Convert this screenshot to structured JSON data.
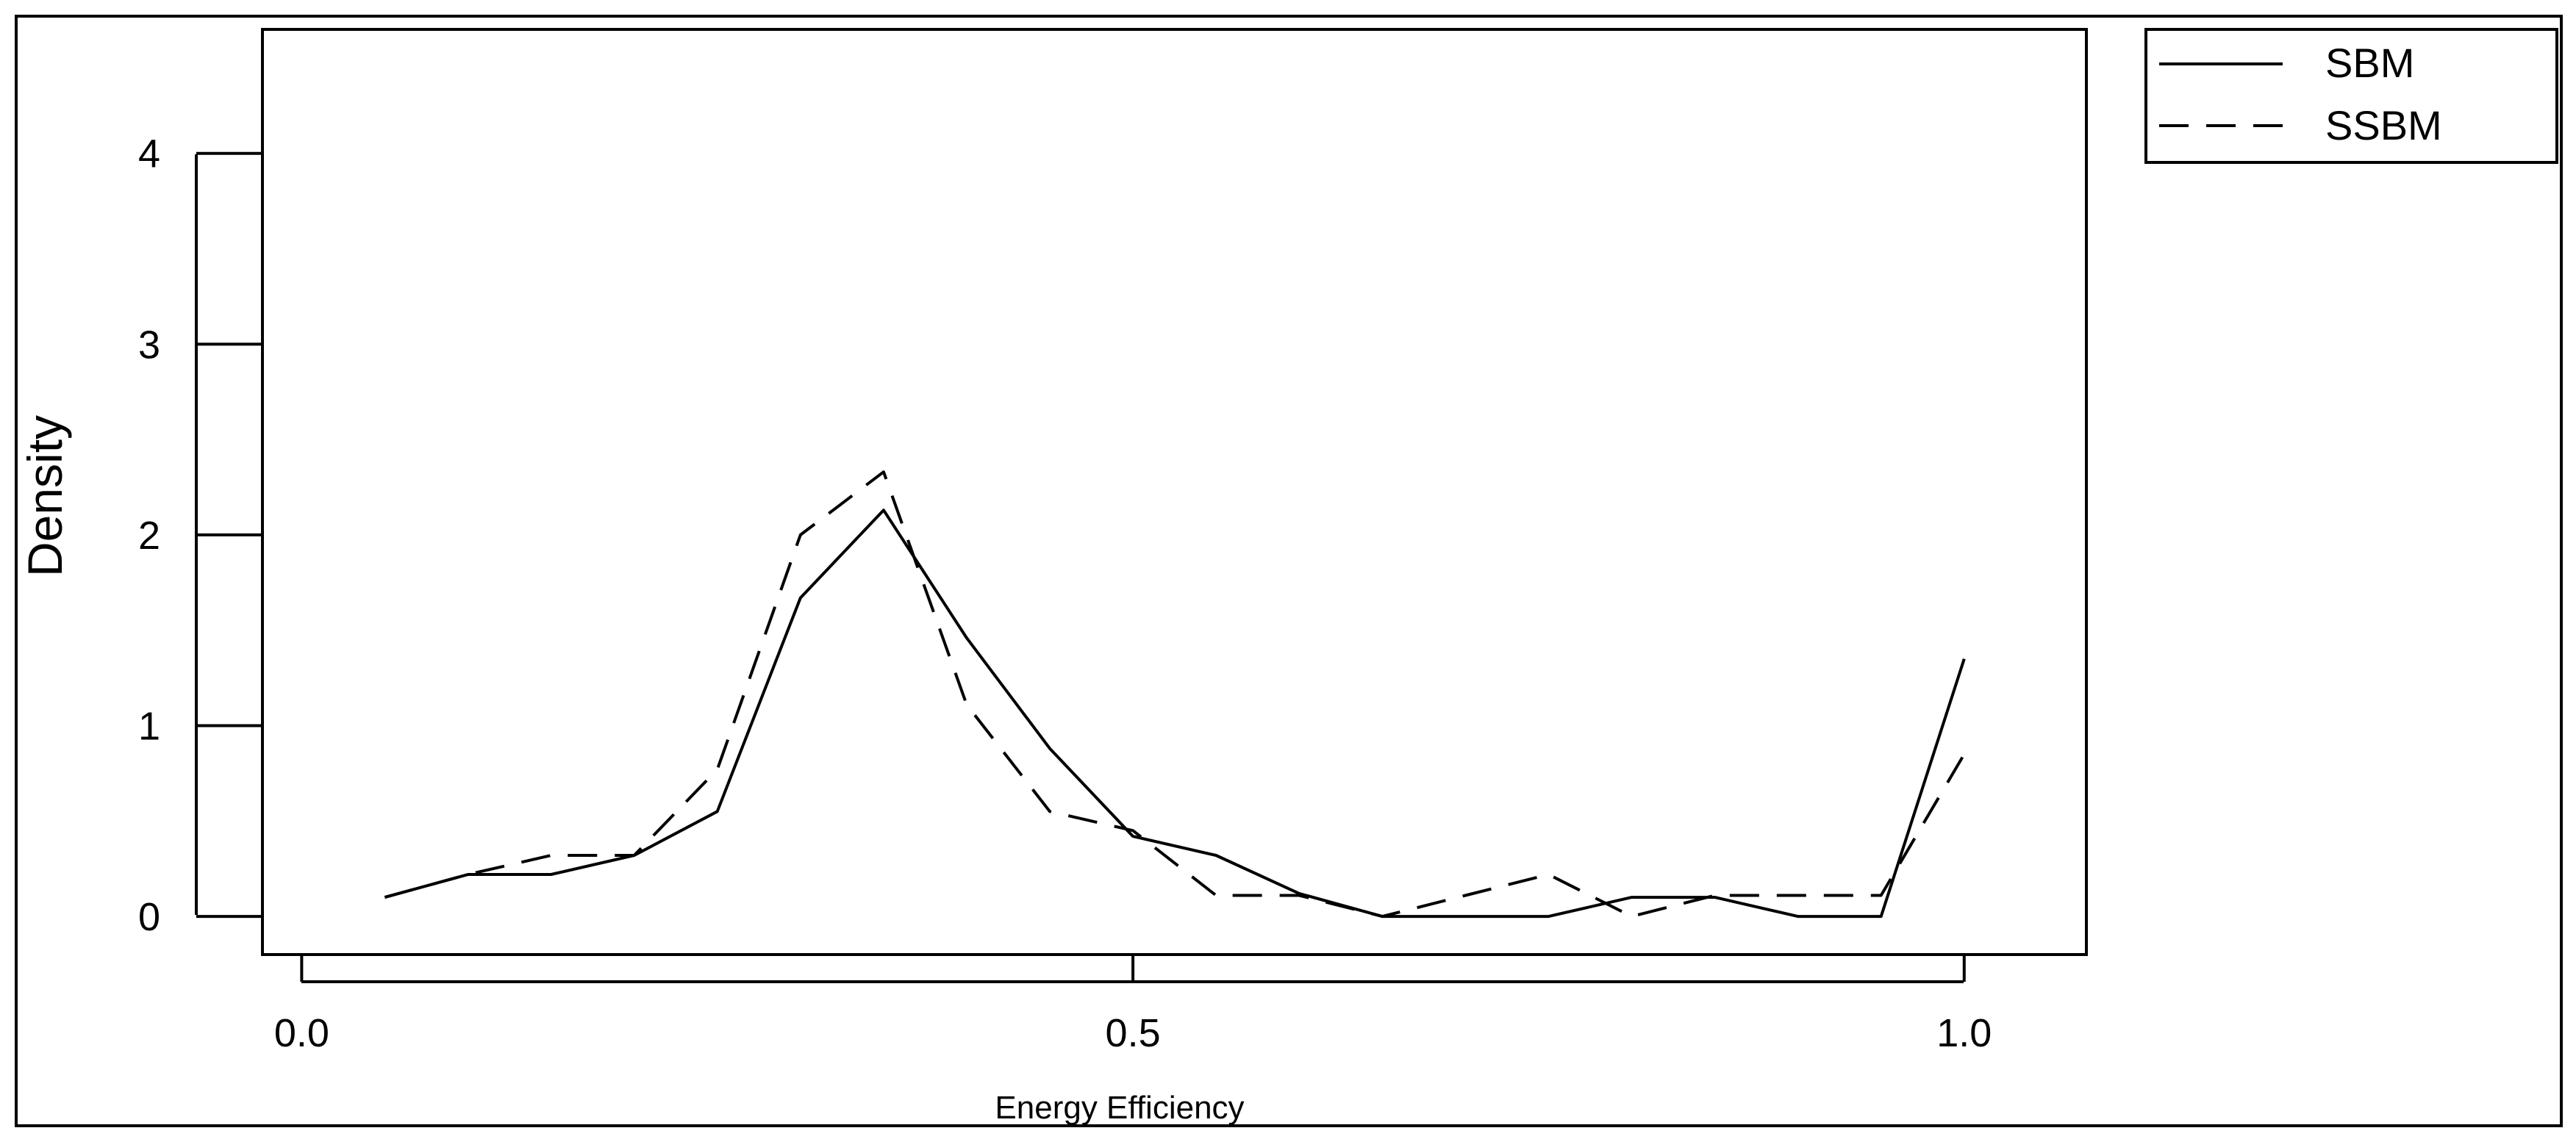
{
  "chart_data": {
    "type": "line",
    "title": "",
    "xlabel": "Energy Efficiency",
    "ylabel": "Density",
    "xlim": [
      -0.0236,
      1.0735
    ],
    "ylim": [
      -0.2,
      4.65
    ],
    "xticks": [
      0.0,
      0.5,
      1.0
    ],
    "xtick_labels": [
      "0.0",
      "0.5",
      "1.0"
    ],
    "yticks": [
      0,
      1,
      2,
      3,
      4
    ],
    "ytick_labels": [
      "0",
      "1",
      "2",
      "3",
      "4"
    ],
    "grid": false,
    "legend_position": "top-right-outside",
    "series": [
      {
        "name": "SBM",
        "style": "solid",
        "x": [
          0.05,
          0.1,
          0.15,
          0.2,
          0.25,
          0.3,
          0.35,
          0.4,
          0.45,
          0.5,
          0.55,
          0.6,
          0.65,
          0.7,
          0.75,
          0.8,
          0.85,
          0.9,
          0.95,
          1.0
        ],
        "y": [
          0.1,
          0.22,
          0.22,
          0.32,
          0.55,
          1.67,
          2.13,
          1.46,
          0.88,
          0.42,
          0.32,
          0.12,
          0.0,
          0.0,
          0.0,
          0.1,
          0.1,
          0.0,
          0.0,
          1.35
        ]
      },
      {
        "name": "SSBM",
        "style": "dashed",
        "x": [
          0.05,
          0.1,
          0.15,
          0.2,
          0.25,
          0.3,
          0.35,
          0.4,
          0.45,
          0.5,
          0.55,
          0.6,
          0.65,
          0.7,
          0.75,
          0.8,
          0.85,
          0.9,
          0.95,
          1.0
        ],
        "y": [
          0.1,
          0.22,
          0.32,
          0.32,
          0.77,
          2.0,
          2.33,
          1.11,
          0.55,
          0.45,
          0.11,
          0.11,
          0.0,
          0.11,
          0.22,
          0.0,
          0.11,
          0.11,
          0.11,
          0.85
        ]
      }
    ]
  }
}
